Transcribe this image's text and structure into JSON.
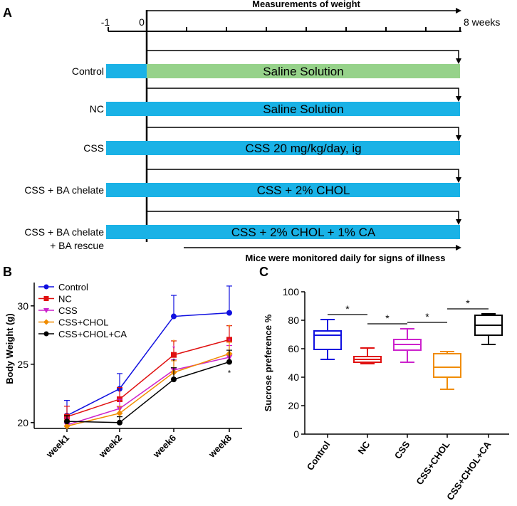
{
  "timeline": {
    "panel_label": "A",
    "ticks": [
      "-1",
      "0",
      "8 weeks"
    ],
    "top_arrow_label": "Measurements of weight",
    "bottom_arrow_label": "Mice were monitored daily for signs of illness",
    "rows": [
      {
        "group": "Control",
        "label2": "",
        "treatment": "Saline Solution",
        "treatment_color": "#96d28a"
      },
      {
        "group": "NC",
        "label2": "",
        "treatment": "Saline Solution",
        "treatment_color": "#1ab2e6"
      },
      {
        "group": "CSS",
        "label2": "",
        "treatment": "CSS 20 mg/kg/day, ig",
        "treatment_color": "#1ab2e6"
      },
      {
        "group": "CSS + BA chelate",
        "label2": "",
        "treatment": "CSS + 2% CHOL",
        "treatment_color": "#1ab2e6"
      },
      {
        "group": "CSS + BA chelate",
        "label2": "+ BA rescue",
        "treatment": "CSS + 2% CHOL + 1% CA",
        "treatment_color": "#1ab2e6"
      }
    ],
    "prephase_color": "#1ab2e6"
  },
  "chart_data": [
    {
      "panel_label": "B",
      "type": "line",
      "title": "",
      "xlabel": "",
      "ylabel": "Body Weight (g)",
      "categories": [
        "week1",
        "week2",
        "week6",
        "week8"
      ],
      "ylim": [
        19.5,
        32
      ],
      "yticks": [
        20,
        25,
        30
      ],
      "series": [
        {
          "name": "Control",
          "color": "#1010e0",
          "marker": "circle",
          "values": [
            20.6,
            22.9,
            29.1,
            29.4
          ],
          "errors": [
            1.3,
            1.3,
            1.8,
            2.3
          ]
        },
        {
          "name": "NC",
          "color": "#e01010",
          "marker": "square",
          "values": [
            20.5,
            22.0,
            25.8,
            27.1
          ],
          "errors": [
            0.9,
            1.0,
            1.2,
            1.2
          ]
        },
        {
          "name": "CSS",
          "color": "#cc22cc",
          "marker": "triangle-down",
          "values": [
            19.8,
            21.2,
            24.5,
            25.6
          ],
          "errors": [
            0.6,
            0.8,
            0.9,
            1.0
          ]
        },
        {
          "name": "CSS+CHOL",
          "color": "#f08c00",
          "marker": "diamond",
          "values": [
            19.7,
            20.8,
            24.3,
            25.9
          ],
          "errors": [
            0.5,
            0.6,
            1.0,
            1.0
          ]
        },
        {
          "name": "CSS+CHOL+CA",
          "color": "#000000",
          "marker": "circle",
          "values": [
            20.1,
            20.0,
            23.7,
            25.2
          ],
          "errors": [
            0.5,
            0.5,
            1.0,
            1.0
          ]
        }
      ],
      "legend": "top-left",
      "annotations": [
        "*"
      ]
    },
    {
      "panel_label": "C",
      "type": "box",
      "title": "",
      "xlabel": "",
      "ylabel": "Sucrose preference %",
      "categories": [
        "Control",
        "NC",
        "CSS",
        "CSS+CHOL",
        "CSS+CHOL+CA"
      ],
      "ylim": [
        0,
        100
      ],
      "yticks": [
        0,
        20,
        40,
        60,
        80,
        100
      ],
      "boxes": [
        {
          "name": "Control",
          "color": "#1010e0",
          "min": 52.5,
          "q1": 59.5,
          "median": 69.5,
          "q3": 72.5,
          "max": 80.5
        },
        {
          "name": "NC",
          "color": "#e01010",
          "min": 49.5,
          "q1": 50.5,
          "median": 52.5,
          "q3": 54.5,
          "max": 60.5
        },
        {
          "name": "CSS",
          "color": "#cc22cc",
          "min": 50.5,
          "q1": 59.0,
          "median": 63.0,
          "q3": 66.5,
          "max": 74.0
        },
        {
          "name": "CSS+CHOL",
          "color": "#f08c00",
          "min": 31.5,
          "q1": 40.0,
          "median": 47.0,
          "q3": 56.5,
          "max": 58.0
        },
        {
          "name": "CSS+CHOL+CA",
          "color": "#000000",
          "min": 63.0,
          "q1": 69.5,
          "median": 76.5,
          "q3": 83.5,
          "max": 84.5
        }
      ],
      "significance": [
        {
          "from": 0,
          "to": 1,
          "label": "*"
        },
        {
          "from": 1,
          "to": 2,
          "label": "*"
        },
        {
          "from": 2,
          "to": 3,
          "label": "*"
        },
        {
          "from": 3,
          "to": 4,
          "label": "*"
        }
      ]
    }
  ]
}
